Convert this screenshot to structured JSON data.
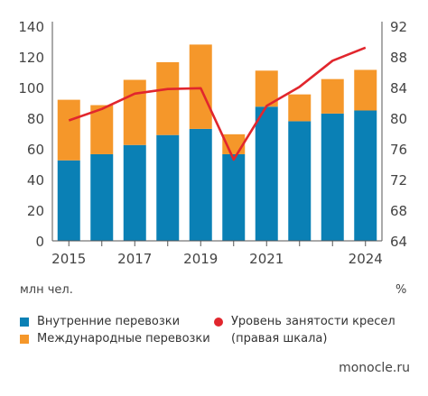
{
  "chart_data": {
    "type": "bar",
    "stacked": true,
    "x": [
      2015,
      2016,
      2017,
      2018,
      2019,
      2020,
      2021,
      2022,
      2023,
      2024
    ],
    "x_tick_labels": [
      "2015",
      "2017",
      "2019",
      "2021",
      "2024"
    ],
    "series": [
      {
        "name": "Внутренние перевозки",
        "axis": "left",
        "color": "#0a80b5",
        "values": [
          52.5,
          56.5,
          62.5,
          69,
          73,
          56.5,
          87.5,
          78,
          83,
          85
        ]
      },
      {
        "name": "Международные перевозки",
        "axis": "left",
        "color": "#f5972a",
        "values": [
          39.5,
          32,
          42.5,
          47.5,
          55,
          13,
          23.5,
          17.5,
          22.5,
          26.5
        ]
      },
      {
        "name": "Уровень занятости кресел (правая шкала)",
        "axis": "right",
        "type": "line",
        "color": "#e1262d",
        "values": [
          79.7,
          81.2,
          83.2,
          83.8,
          83.9,
          74.6,
          81.6,
          84.1,
          87.5,
          89.2
        ]
      }
    ],
    "ylim_left": [
      0,
      140
    ],
    "yticks_left": [
      0,
      20,
      40,
      60,
      80,
      100,
      120,
      140
    ],
    "ylim_right": [
      64,
      92
    ],
    "yticks_right": [
      64,
      68,
      72,
      76,
      80,
      84,
      88,
      92
    ],
    "ylabel_left": "млн чел.",
    "ylabel_right": "%",
    "grid": false,
    "legend_position": "bottom"
  },
  "legend": {
    "domestic": "Внутренние перевозки",
    "international": "Международные перевозки",
    "occupancy_line1": "Уровень занятости кресел",
    "occupancy_line2": "(правая шкала)"
  },
  "units": {
    "left": "млн чел.",
    "right": "%"
  },
  "source": "monocle.ru",
  "colors": {
    "domestic": "#0a80b5",
    "international": "#f5972a",
    "occupancy": "#e1262d",
    "axis": "#555555"
  }
}
